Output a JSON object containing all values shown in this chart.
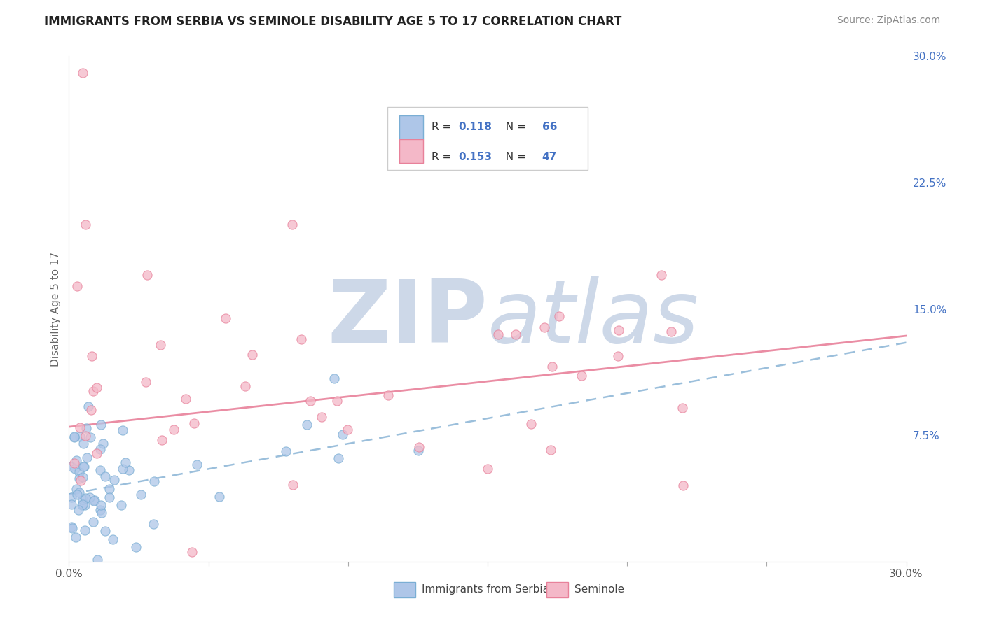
{
  "title": "IMMIGRANTS FROM SERBIA VS SEMINOLE DISABILITY AGE 5 TO 17 CORRELATION CHART",
  "source": "Source: ZipAtlas.com",
  "ylabel": "Disability Age 5 to 17",
  "legend_label_1": "Immigrants from Serbia",
  "legend_label_2": "Seminole",
  "r1": "0.118",
  "n1": "66",
  "r2": "0.153",
  "n2": "47",
  "xlim": [
    0,
    0.3
  ],
  "ylim": [
    0,
    0.3
  ],
  "right_yticks": [
    0.075,
    0.15,
    0.225,
    0.3
  ],
  "right_ytick_labels": [
    "7.5%",
    "15.0%",
    "22.5%",
    "30.0%"
  ],
  "color_blue": "#aec6e8",
  "color_pink": "#f4b8c8",
  "color_blue_edge": "#7aaed4",
  "color_pink_edge": "#e8819a",
  "color_blue_line": "#90b8d8",
  "color_pink_line": "#e8819a",
  "color_axis_label": "#666666",
  "color_title": "#222222",
  "color_source": "#888888",
  "color_right_tick": "#4472c4",
  "bg_color": "#ffffff",
  "grid_color": "#dddddd",
  "watermark_color": "#cdd8e8",
  "serbia_trend_intercept": 0.04,
  "serbia_trend_slope": 0.32,
  "seminole_trend_intercept": 0.08,
  "seminole_trend_slope": 0.2
}
